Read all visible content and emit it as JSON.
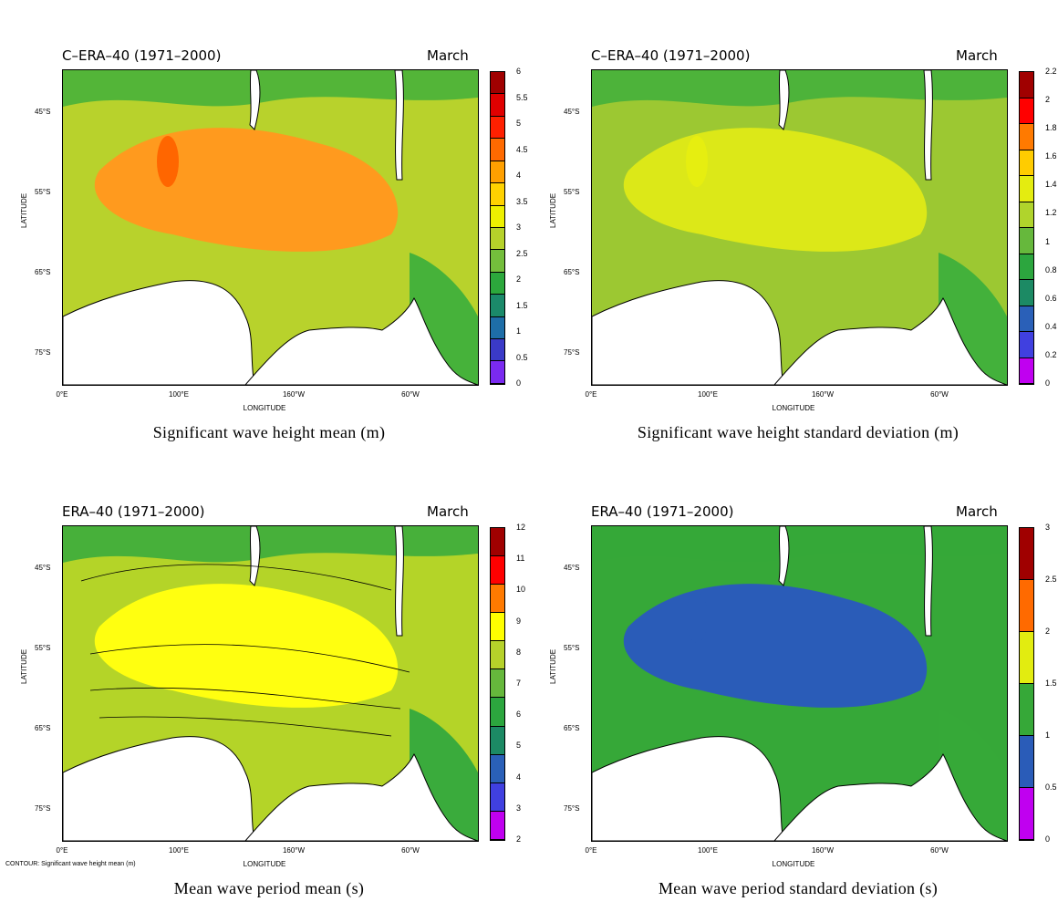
{
  "panels": [
    {
      "header_left": "C–ERA–40 (1971–2000)",
      "header_right": "March",
      "caption": "Significant wave height mean (m)",
      "colorbar": {
        "labels": [
          "6",
          "5.5",
          "5",
          "4.5",
          "4",
          "3.5",
          "3",
          "2.5",
          "2",
          "1.5",
          "1",
          "0.5",
          "0"
        ],
        "colors": [
          "#a00000",
          "#e00000",
          "#ff2000",
          "#ff6a00",
          "#ffa000",
          "#ffd200",
          "#eef000",
          "#b6d22a",
          "#74be3c",
          "#2ca83c",
          "#1b8a6a",
          "#1e6ea8",
          "#3a3ac8",
          "#7a2af0"
        ]
      },
      "fill": "#b8d22c",
      "hot": "#ff9a1e",
      "core": "#ff6600",
      "edge": "#3aae3c"
    },
    {
      "header_left": "C–ERA–40 (1971–2000)",
      "header_right": "March",
      "caption": "Significant wave height standard deviation (m)",
      "colorbar": {
        "labels": [
          "2.2",
          "2",
          "1.8",
          "1.6",
          "1.4",
          "1.2",
          "1",
          "0.8",
          "0.6",
          "0.4",
          "0.2",
          "0"
        ],
        "colors": [
          "#a00000",
          "#ff0000",
          "#ff7a00",
          "#ffcc00",
          "#e4ec10",
          "#b0d42c",
          "#66b83c",
          "#2ca63e",
          "#1c8a64",
          "#2a60b8",
          "#4040e0",
          "#c000f0"
        ]
      },
      "fill": "#9cc832",
      "hot": "#dce818",
      "core": "#e6ee10",
      "edge": "#3aae3c"
    },
    {
      "header_left": "ERA–40 (1971–2000)",
      "header_right": "March",
      "caption": "Mean wave period mean (s)",
      "colorbar": {
        "labels": [
          "12",
          "11",
          "10",
          "9",
          "8",
          "7",
          "6",
          "5",
          "4",
          "3",
          "2"
        ],
        "colors": [
          "#a00000",
          "#ff0000",
          "#ff7a00",
          "#ffff00",
          "#b6d22a",
          "#66b83c",
          "#2ca63e",
          "#1c8a64",
          "#2a60b8",
          "#4040e0",
          "#c000f0"
        ]
      },
      "fill": "#b4d428",
      "hot": "#ffff10",
      "core": "#ffff10",
      "edge": "#2ca63e"
    },
    {
      "header_left": "ERA–40 (1971–2000)",
      "header_right": "March",
      "caption": "Mean wave period standard deviation (s)",
      "colorbar": {
        "labels": [
          "3",
          "2.5",
          "2",
          "1.5",
          "1",
          "0.5",
          "0"
        ],
        "colors": [
          "#a00000",
          "#ff6a00",
          "#e2ec10",
          "#36a838",
          "#2a5cb8",
          "#c000f0"
        ]
      },
      "fill": "#36a838",
      "hot": "#2a5cb8",
      "core": "#2a5cb8",
      "edge": "#36a838"
    }
  ],
  "axes": {
    "lat_ticks": [
      "45°S",
      "55°S",
      "65°S",
      "75°S"
    ],
    "lon_ticks": [
      "0°E",
      "100°E",
      "160°W",
      "60°W"
    ],
    "xlabel": "LONGITUDE",
    "ylabel": "LATITUDE"
  },
  "contour_note": "CONTOUR: Significant wave height mean (m)"
}
